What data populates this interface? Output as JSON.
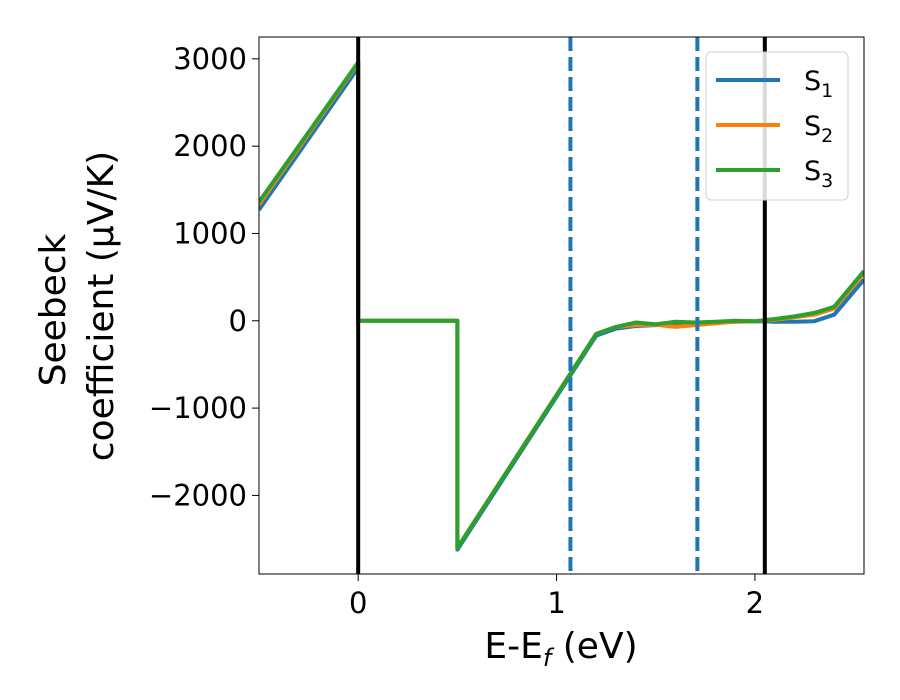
{
  "chart_data": {
    "type": "line",
    "xlabel": {
      "base": "E-E",
      "sub": "f",
      "rest": " (eV)"
    },
    "ylabel": {
      "line1": "Seebeck",
      "line2": "coefficient  (μV/K)"
    },
    "xlim": [
      -0.5,
      2.55
    ],
    "ylim": [
      -2900,
      3250
    ],
    "x_ticks": [
      0,
      1,
      2
    ],
    "x_tick_labels": [
      "0",
      "1",
      "2"
    ],
    "y_ticks": [
      -2000,
      -1000,
      0,
      1000,
      2000,
      3000
    ],
    "y_tick_labels": [
      "−2000",
      "−1000",
      "0",
      "1000",
      "2000",
      "3000"
    ],
    "vertical_lines": [
      {
        "x": 0.0,
        "style": "solid",
        "color": "#000000"
      },
      {
        "x": 1.07,
        "style": "dashed",
        "color": "#1f77b4"
      },
      {
        "x": 1.71,
        "style": "dashed",
        "color": "#1f77b4"
      },
      {
        "x": 2.05,
        "style": "solid",
        "color": "#000000"
      }
    ],
    "legend_position": "top-right",
    "series": [
      {
        "label": {
          "base": "S",
          "sub": "1"
        },
        "color": "#1f77b4",
        "x": [
          -0.5,
          0.0,
          0.0,
          0.5,
          0.5,
          1.2,
          1.3,
          1.4,
          1.5,
          1.6,
          1.7,
          1.8,
          1.9,
          2.0,
          2.1,
          2.2,
          2.3,
          2.4,
          2.55
        ],
        "y": [
          1270,
          2900,
          0,
          0,
          -2620,
          -170,
          -90,
          -60,
          -50,
          -40,
          -30,
          -20,
          -10,
          -5,
          -10,
          -10,
          -5,
          70,
          470
        ]
      },
      {
        "label": {
          "base": "S",
          "sub": "2"
        },
        "color": "#ff7f0e",
        "x": [
          -0.5,
          0.0,
          0.0,
          0.5,
          0.5,
          1.2,
          1.3,
          1.4,
          1.5,
          1.6,
          1.7,
          1.8,
          1.9,
          2.0,
          2.1,
          2.2,
          2.3,
          2.4,
          2.55
        ],
        "y": [
          1330,
          2950,
          0,
          0,
          -2600,
          -150,
          -70,
          -50,
          -45,
          -70,
          -50,
          -30,
          -10,
          -5,
          10,
          40,
          70,
          140,
          540
        ]
      },
      {
        "label": {
          "base": "S",
          "sub": "3"
        },
        "color": "#2ca02c",
        "x": [
          -0.5,
          0.0,
          0.0,
          0.5,
          0.5,
          1.2,
          1.3,
          1.4,
          1.5,
          1.6,
          1.7,
          1.8,
          1.9,
          2.0,
          2.1,
          2.2,
          2.3,
          2.4,
          2.55
        ],
        "y": [
          1360,
          2960,
          0,
          0,
          -2600,
          -150,
          -70,
          -20,
          -40,
          -10,
          -20,
          -10,
          0,
          -5,
          20,
          50,
          90,
          160,
          570
        ]
      }
    ]
  }
}
